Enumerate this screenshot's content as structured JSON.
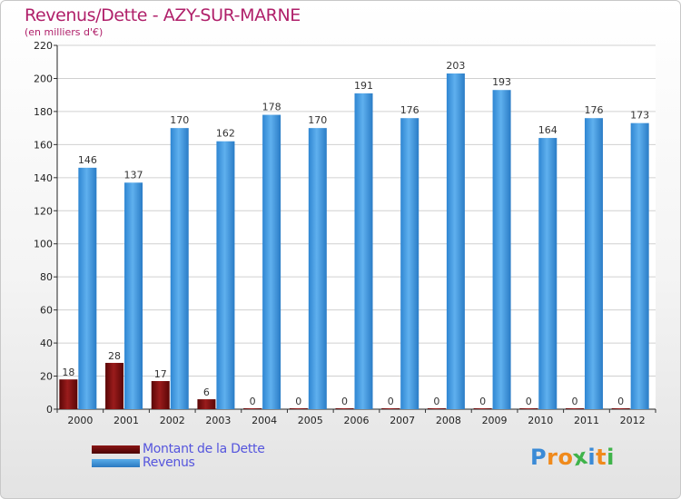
{
  "title": "Revenus/Dette - AZY-SUR-MARNE",
  "subtitle": "(en milliers d'€)",
  "chart_data": {
    "type": "bar",
    "title": "Revenus/Dette - AZY-SUR-MARNE",
    "ylabel": "(en milliers d'€)",
    "xlabel": "",
    "ylim": [
      0,
      220
    ],
    "yticks": [
      0,
      20,
      40,
      60,
      80,
      100,
      120,
      140,
      160,
      180,
      200,
      220
    ],
    "grid": true,
    "categories": [
      "2000",
      "2001",
      "2002",
      "2003",
      "2004",
      "2005",
      "2006",
      "2007",
      "2008",
      "2009",
      "2010",
      "2011",
      "2012"
    ],
    "series": [
      {
        "name": "Montant de la Dette",
        "color": "#7a0a0a",
        "values": [
          18,
          28,
          17,
          6,
          0,
          0,
          0,
          0,
          0,
          0,
          0,
          0,
          0
        ]
      },
      {
        "name": "Revenus",
        "color": "#3d9ae0",
        "values": [
          146,
          137,
          170,
          162,
          178,
          170,
          191,
          176,
          203,
          193,
          164,
          176,
          173
        ]
      }
    ],
    "legend_position": "bottom-left"
  },
  "legend": [
    {
      "label": "Montant de la Dette",
      "color": "#6e0a0a"
    },
    {
      "label": "Revenus",
      "color": "#3d9ae0"
    }
  ],
  "logo": {
    "letters": [
      "P",
      "r",
      "o",
      "x",
      "i",
      "t",
      "i"
    ],
    "colors": [
      "#3a8ad6",
      "#f08a1c",
      "#f08a1c",
      "#3fb34a",
      "#3a8ad6",
      "#f08a1c",
      "#3fb34a"
    ]
  }
}
